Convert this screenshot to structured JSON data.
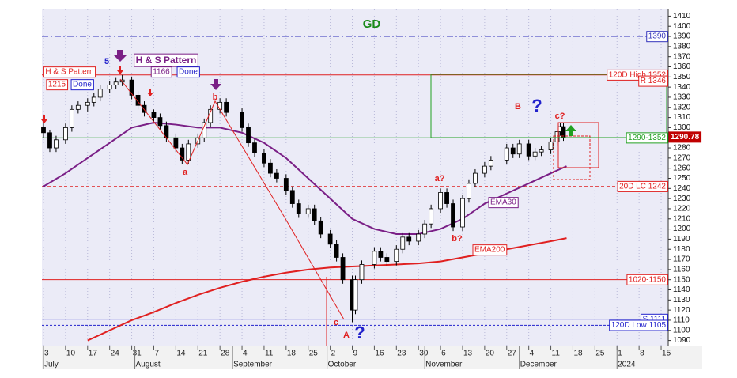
{
  "chart_data": {
    "type": "candlestick",
    "title": "GD",
    "title_color": "#1a8a1a",
    "xlim": [
      0,
      198
    ],
    "ylim": [
      1085,
      1415
    ],
    "yticks": [
      1090,
      1100,
      1110,
      1120,
      1130,
      1140,
      1150,
      1160,
      1170,
      1180,
      1190,
      1200,
      1210,
      1220,
      1230,
      1240,
      1250,
      1260,
      1270,
      1280,
      1290,
      1300,
      1310,
      1320,
      1330,
      1340,
      1350,
      1360,
      1370,
      1380,
      1390,
      1400,
      1410
    ],
    "xticks": [
      {
        "value": 0,
        "label": "3"
      },
      {
        "value": 7,
        "label": "10"
      },
      {
        "value": 14,
        "label": "17"
      },
      {
        "value": 21,
        "label": "24"
      },
      {
        "value": 28,
        "label": "31"
      },
      {
        "value": 35,
        "label": "7"
      },
      {
        "value": 42,
        "label": "14"
      },
      {
        "value": 49,
        "label": "21"
      },
      {
        "value": 56,
        "label": "28"
      },
      {
        "value": 63,
        "label": "4"
      },
      {
        "value": 70,
        "label": "11"
      },
      {
        "value": 77,
        "label": "18"
      },
      {
        "value": 84,
        "label": "25"
      },
      {
        "value": 91,
        "label": "2"
      },
      {
        "value": 98,
        "label": "9"
      },
      {
        "value": 105,
        "label": "16"
      },
      {
        "value": 112,
        "label": "23"
      },
      {
        "value": 119,
        "label": "30"
      },
      {
        "value": 126,
        "label": "6"
      },
      {
        "value": 133,
        "label": "13"
      },
      {
        "value": 140,
        "label": "20"
      },
      {
        "value": 147,
        "label": "27"
      },
      {
        "value": 154,
        "label": "4"
      },
      {
        "value": 161,
        "label": "11"
      },
      {
        "value": 168,
        "label": "18"
      },
      {
        "value": 175,
        "label": "25"
      },
      {
        "value": 182,
        "label": "1"
      },
      {
        "value": 189,
        "label": "8"
      },
      {
        "value": 196,
        "label": "15"
      }
    ],
    "months": [
      {
        "value": 0,
        "label": "July"
      },
      {
        "value": 29,
        "label": "August"
      },
      {
        "value": 60,
        "label": "September"
      },
      {
        "value": 90,
        "label": "October"
      },
      {
        "value": 121,
        "label": "November"
      },
      {
        "value": 151,
        "label": "December"
      },
      {
        "value": 182,
        "label": "2024"
      }
    ],
    "up_color": "#ffffff",
    "down_color": "#000000",
    "candles": [
      [
        0,
        1300,
        1305,
        1290,
        1295
      ],
      [
        2,
        1295,
        1298,
        1276,
        1280
      ],
      [
        4,
        1280,
        1292,
        1276,
        1288
      ],
      [
        7,
        1288,
        1304,
        1284,
        1300
      ],
      [
        9,
        1300,
        1322,
        1296,
        1318
      ],
      [
        11,
        1318,
        1326,
        1314,
        1322
      ],
      [
        14,
        1322,
        1329,
        1316,
        1325
      ],
      [
        16,
        1325,
        1334,
        1321,
        1330
      ],
      [
        18,
        1330,
        1342,
        1326,
        1338
      ],
      [
        21,
        1338,
        1346,
        1334,
        1342
      ],
      [
        23,
        1342,
        1349,
        1338,
        1345
      ],
      [
        25,
        1345,
        1352,
        1341,
        1347
      ],
      [
        28,
        1347,
        1350,
        1328,
        1332
      ],
      [
        30,
        1332,
        1336,
        1318,
        1322
      ],
      [
        32,
        1322,
        1326,
        1311,
        1315
      ],
      [
        35,
        1315,
        1318,
        1306,
        1310
      ],
      [
        37,
        1310,
        1314,
        1298,
        1302
      ],
      [
        39,
        1302,
        1306,
        1286,
        1290
      ],
      [
        42,
        1290,
        1294,
        1276,
        1280
      ],
      [
        44,
        1280,
        1284,
        1264,
        1268
      ],
      [
        46,
        1268,
        1288,
        1264,
        1284
      ],
      [
        49,
        1284,
        1294,
        1280,
        1290
      ],
      [
        51,
        1290,
        1309,
        1286,
        1305
      ],
      [
        53,
        1305,
        1322,
        1301,
        1318
      ],
      [
        56,
        1318,
        1329,
        1314,
        1325
      ],
      [
        58,
        1325,
        1329,
        1311,
        1315
      ],
      [
        63,
        1315,
        1319,
        1296,
        1300
      ],
      [
        65,
        1300,
        1304,
        1281,
        1285
      ],
      [
        67,
        1285,
        1289,
        1271,
        1275
      ],
      [
        70,
        1275,
        1279,
        1261,
        1265
      ],
      [
        72,
        1265,
        1269,
        1251,
        1255
      ],
      [
        74,
        1255,
        1259,
        1246,
        1250
      ],
      [
        77,
        1250,
        1254,
        1234,
        1238
      ],
      [
        79,
        1238,
        1242,
        1221,
        1225
      ],
      [
        81,
        1225,
        1229,
        1211,
        1215
      ],
      [
        84,
        1215,
        1224,
        1211,
        1220
      ],
      [
        86,
        1220,
        1224,
        1204,
        1208
      ],
      [
        88,
        1208,
        1212,
        1191,
        1195
      ],
      [
        91,
        1195,
        1199,
        1181,
        1185
      ],
      [
        93,
        1185,
        1189,
        1168,
        1172
      ],
      [
        95,
        1172,
        1176,
        1146,
        1150
      ],
      [
        98,
        1150,
        1154,
        1108,
        1120
      ],
      [
        99,
        1120,
        1154,
        1116,
        1150
      ],
      [
        101,
        1150,
        1169,
        1146,
        1165
      ],
      [
        105,
        1165,
        1182,
        1161,
        1178
      ],
      [
        107,
        1178,
        1182,
        1168,
        1172
      ],
      [
        109,
        1172,
        1176,
        1164,
        1168
      ],
      [
        112,
        1168,
        1184,
        1164,
        1180
      ],
      [
        114,
        1180,
        1196,
        1176,
        1192
      ],
      [
        116,
        1192,
        1196,
        1184,
        1188
      ],
      [
        119,
        1188,
        1199,
        1184,
        1195
      ],
      [
        121,
        1195,
        1209,
        1191,
        1205
      ],
      [
        123,
        1205,
        1224,
        1201,
        1220
      ],
      [
        126,
        1220,
        1240,
        1216,
        1236
      ],
      [
        128,
        1236,
        1240,
        1221,
        1225
      ],
      [
        130,
        1225,
        1229,
        1198,
        1202
      ],
      [
        133,
        1202,
        1234,
        1198,
        1230
      ],
      [
        135,
        1230,
        1249,
        1226,
        1245
      ],
      [
        137,
        1245,
        1259,
        1241,
        1255
      ],
      [
        140,
        1255,
        1266,
        1251,
        1262
      ],
      [
        142,
        1262,
        1272,
        1258,
        1268
      ],
      [
        147,
        1268,
        1284,
        1264,
        1280
      ],
      [
        149,
        1280,
        1284,
        1270,
        1274
      ],
      [
        151,
        1274,
        1288,
        1270,
        1284
      ],
      [
        154,
        1284,
        1288,
        1268,
        1272
      ],
      [
        156,
        1272,
        1280,
        1268,
        1276
      ],
      [
        158,
        1276,
        1282,
        1272,
        1278
      ],
      [
        161,
        1278,
        1290,
        1274,
        1286
      ],
      [
        163,
        1286,
        1300,
        1282,
        1296
      ],
      [
        164,
        1296,
        1305,
        1292,
        1301
      ],
      [
        165,
        1301,
        1305,
        1287,
        1290.78
      ]
    ],
    "series": [
      {
        "name": "EMA30",
        "color": "#7a1f86",
        "x": [
          0,
          7,
          14,
          21,
          28,
          35,
          42,
          49,
          56,
          63,
          70,
          77,
          84,
          91,
          98,
          105,
          112,
          119,
          126,
          133,
          140,
          147,
          154,
          161,
          166
        ],
        "values": [
          1242,
          1255,
          1270,
          1285,
          1300,
          1305,
          1303,
          1300,
          1300,
          1295,
          1285,
          1270,
          1250,
          1230,
          1210,
          1200,
          1195,
          1195,
          1200,
          1210,
          1225,
          1235,
          1245,
          1255,
          1262
        ]
      },
      {
        "name": "EMA200",
        "color": "#e02020",
        "x": [
          14,
          21,
          28,
          35,
          42,
          49,
          56,
          63,
          70,
          77,
          84,
          91,
          98,
          105,
          112,
          119,
          126,
          133,
          140,
          147,
          154,
          161,
          166
        ],
        "values": [
          1090,
          1100,
          1110,
          1118,
          1127,
          1135,
          1142,
          1148,
          1153,
          1157,
          1160,
          1162,
          1163,
          1164,
          1165,
          1166,
          1168,
          1172,
          1176,
          1180,
          1184,
          1188,
          1191
        ]
      }
    ],
    "last_price": 1290.78,
    "levels": [
      {
        "value": 1390,
        "label": "1390",
        "color": "#3333bb",
        "dash": "8 3 2 3"
      },
      {
        "value": 1352,
        "label": "120D High 1352",
        "color": "#e02020",
        "dash": ""
      },
      {
        "value": 1346,
        "label": "R 1346",
        "color": "#e02020",
        "dash": ""
      },
      {
        "value": 1290,
        "label": "1290-1352",
        "color": "#22a022",
        "dash": ""
      },
      {
        "value": 1242,
        "label": "20D LC 1242",
        "color": "#e02020",
        "dash": "4 3"
      },
      {
        "value": 1150,
        "label": "1020-1150",
        "color": "#e02020",
        "dash": ""
      },
      {
        "value": 1111,
        "label": "S 1111",
        "color": "#2222cc",
        "dash": ""
      },
      {
        "value": 1105,
        "label": "120D Low 1105",
        "color": "#2222cc",
        "dash": "3 2"
      }
    ],
    "annotations": [
      {
        "text": "H & S Pattern",
        "color": "#e02020"
      },
      {
        "text": "1215",
        "color": "#e02020"
      },
      {
        "text": "Done",
        "color": "#2222cc"
      },
      {
        "text": "H & S Pattern",
        "color": "#7a1f86"
      },
      {
        "text": "1166",
        "color": "#7a1f86"
      },
      {
        "text": "Done",
        "color": "#2222cc"
      },
      {
        "text": "5",
        "color": "#2222cc"
      },
      {
        "text": "a",
        "color": "#e02020"
      },
      {
        "text": "b",
        "color": "#e02020"
      },
      {
        "text": "a?",
        "color": "#e02020"
      },
      {
        "text": "b?",
        "color": "#e02020"
      },
      {
        "text": "c?",
        "color": "#e02020"
      },
      {
        "text": "c",
        "color": "#e02020"
      },
      {
        "text": "A",
        "color": "#e02020"
      },
      {
        "text": "?",
        "color": "#2222cc"
      },
      {
        "text": "B",
        "color": "#e02020"
      },
      {
        "text": "?",
        "color": "#2222cc"
      }
    ]
  }
}
